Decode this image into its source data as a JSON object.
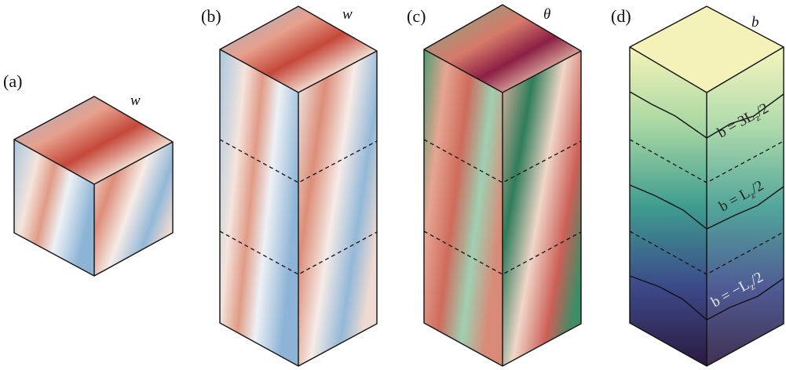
{
  "panels": [
    {
      "label": "(a)",
      "variable": "w"
    },
    {
      "label": "(b)",
      "variable": "w"
    },
    {
      "label": "(c)",
      "variable": "θ"
    },
    {
      "label": "(d)",
      "variable": "b",
      "annotations": [
        {
          "prefix": "b = 3L",
          "sub": "z",
          "suffix": "/2"
        },
        {
          "prefix": "b = L",
          "sub": "z",
          "suffix": "/2"
        },
        {
          "prefix": "b = −L",
          "sub": "z",
          "suffix": "/2"
        }
      ]
    }
  ]
}
